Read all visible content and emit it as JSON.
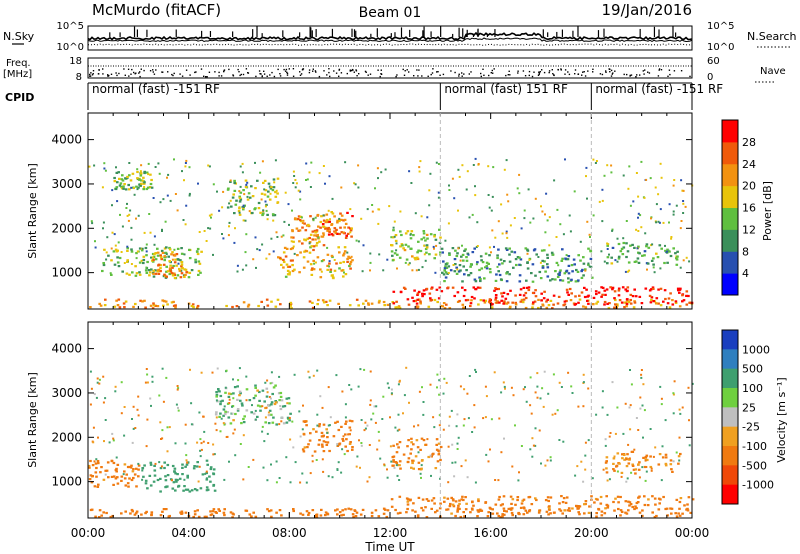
{
  "header": {
    "station": "McMurdo (fitACF)",
    "beam": "Beam 01",
    "date": "19/Jan/2016"
  },
  "noise_panel": {
    "left_label": "N.Sky",
    "left_ticks": [
      "10^5",
      "10^0"
    ],
    "right_label": "N.Search",
    "right_ticks": [
      "10^5",
      "10^0"
    ]
  },
  "freq_panel": {
    "left_label_1": "Freq.",
    "left_label_2": "[MHz]",
    "left_ticks": [
      "18",
      "8"
    ],
    "right_label": "Nave",
    "right_ticks": [
      "60",
      "0"
    ]
  },
  "cpid_panel": {
    "label": "CPID",
    "segments": [
      {
        "start_h": 0,
        "end_h": 14,
        "text": "normal (fast) -151 RF"
      },
      {
        "start_h": 14,
        "end_h": 20,
        "text": "normal (fast) 151 RF"
      },
      {
        "start_h": 20,
        "end_h": 24,
        "text": "normal (fast) -151 RF"
      }
    ]
  },
  "power_panel": {
    "ylabel": "Slant Range [km]",
    "yticks": [
      "1000",
      "2000",
      "3000",
      "4000"
    ],
    "colorbar_label": "Power [dB]",
    "colorbar_ticks": [
      "4",
      "8",
      "12",
      "16",
      "20",
      "24",
      "28"
    ],
    "colors": [
      "#0000ff",
      "#2850b0",
      "#3a8f5a",
      "#5fbf3f",
      "#e8c40a",
      "#f39210",
      "#f05a0a",
      "#ff0000"
    ]
  },
  "velocity_panel": {
    "ylabel": "Slant Range [km]",
    "yticks": [
      "1000",
      "2000",
      "3000",
      "4000"
    ],
    "colorbar_label": "Velocity [m s⁻¹]",
    "colorbar_ticks": [
      "1000",
      "500",
      "100",
      "25",
      "-25",
      "-100",
      "-500",
      "-1000"
    ],
    "colors": [
      "#1a3fbf",
      "#2f7fbf",
      "#3f9f6f",
      "#6fcf3f",
      "#bfbfbf",
      "#f0a020",
      "#f07a10",
      "#f04808",
      "#ff0000"
    ]
  },
  "x_axis": {
    "ticks": [
      "00:00",
      "04:00",
      "08:00",
      "12:00",
      "16:00",
      "20:00",
      "00:00"
    ],
    "label": "Time UT"
  },
  "chart_data": [
    {
      "type": "heatmap",
      "title": "Power",
      "x": "time UT (hours)",
      "y": "slant range (km)",
      "xlim": [
        0,
        24
      ],
      "ylim": [
        180,
        4600
      ],
      "colorbar": {
        "label": "Power [dB]",
        "range": [
          0,
          32
        ]
      },
      "regions": [
        {
          "t": [
            0,
            24
          ],
          "r": [
            220,
            420
          ],
          "p": 22
        },
        {
          "t": [
            12,
            24
          ],
          "r": [
            300,
            700
          ],
          "p": 30
        },
        {
          "t": [
            0.5,
            4.5
          ],
          "r": [
            900,
            1600
          ],
          "p": 14
        },
        {
          "t": [
            2.5,
            4
          ],
          "r": [
            900,
            1500
          ],
          "p": 22
        },
        {
          "t": [
            7.5,
            10.5
          ],
          "r": [
            900,
            1600
          ],
          "p": 20
        },
        {
          "t": [
            8,
            9.5
          ],
          "r": [
            1600,
            2300
          ],
          "p": 22
        },
        {
          "t": [
            9,
            10.5
          ],
          "r": [
            1800,
            2400
          ],
          "p": 24
        },
        {
          "t": [
            1,
            2.5
          ],
          "r": [
            2900,
            3300
          ],
          "p": 14
        },
        {
          "t": [
            5.5,
            7.5
          ],
          "r": [
            2300,
            3200
          ],
          "p": 14
        },
        {
          "t": [
            12,
            14
          ],
          "r": [
            1300,
            2000
          ],
          "p": 16
        },
        {
          "t": [
            20.5,
            23.5
          ],
          "r": [
            1200,
            1700
          ],
          "p": 12
        },
        {
          "t": [
            14,
            20
          ],
          "r": [
            800,
            1600
          ],
          "p": 10
        }
      ]
    },
    {
      "type": "heatmap",
      "title": "Velocity",
      "x": "time UT (hours)",
      "y": "slant range (km)",
      "xlim": [
        0,
        24
      ],
      "ylim": [
        180,
        4600
      ],
      "colorbar": {
        "label": "Velocity [m s-1]",
        "ticks": [
          1000,
          500,
          100,
          25,
          -25,
          -100,
          -500,
          -1000
        ]
      },
      "regions": [
        {
          "t": [
            0,
            24
          ],
          "r": [
            220,
            420
          ],
          "v": -300
        },
        {
          "t": [
            12,
            24
          ],
          "r": [
            300,
            700
          ],
          "v": -200
        },
        {
          "t": [
            2,
            5
          ],
          "r": [
            800,
            1500
          ],
          "v": 300
        },
        {
          "t": [
            0,
            2
          ],
          "r": [
            900,
            1500
          ],
          "v": -200
        },
        {
          "t": [
            8.5,
            10.5
          ],
          "r": [
            1700,
            2400
          ],
          "v": -200
        },
        {
          "t": [
            12,
            14
          ],
          "r": [
            1300,
            2000
          ],
          "v": -150
        },
        {
          "t": [
            20.5,
            23.5
          ],
          "r": [
            1200,
            1700
          ],
          "v": -150
        },
        {
          "t": [
            5,
            8
          ],
          "r": [
            2300,
            3200
          ],
          "v": 80
        }
      ]
    }
  ]
}
